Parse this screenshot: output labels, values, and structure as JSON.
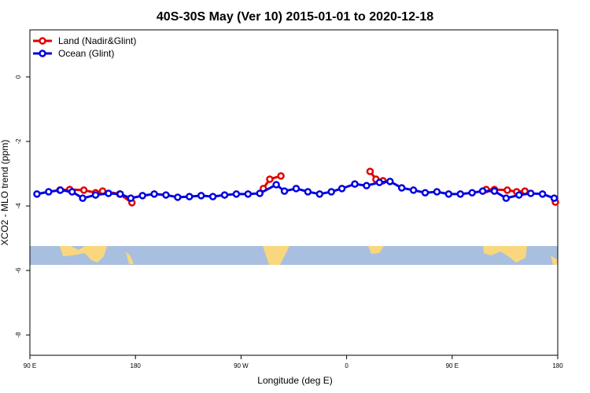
{
  "chart_data": {
    "type": "line",
    "title": "40S-30S May (Ver 10)   2015-01-01 to 2020-12-18",
    "xlabel": "Longitude (deg E)",
    "ylabel": "XCO2 - MLO trend (ppm)",
    "xlim": [
      90,
      540
    ],
    "xticks": [
      {
        "value": 90,
        "label": "90 E"
      },
      180,
      {
        "value": 270,
        "label": "90 W"
      },
      {
        "value": 360,
        "label": "0"
      },
      {
        "value": 450,
        "label": "90 E"
      },
      {
        "value": 540,
        "label": "180"
      }
    ],
    "ylim": [
      -8.63,
      1.46
    ],
    "yticks": [
      0,
      -2,
      -4,
      -6,
      -8
    ],
    "legend": "top-left",
    "series": [
      {
        "name": "Land (Nadir&Glint)",
        "color": "#e00000",
        "x": [
          115.5,
          124,
          136,
          146,
          152,
          166.5,
          177,
          null,
          289,
          294.5,
          304,
          null,
          380,
          385,
          391,
          null,
          479,
          486,
          497,
          505,
          512,
          null,
          538
        ],
        "values": [
          -3.51,
          -3.49,
          -3.51,
          -3.59,
          -3.54,
          -3.63,
          -3.9,
          null,
          -3.46,
          -3.17,
          -3.07,
          null,
          -2.93,
          -3.17,
          -3.22,
          null,
          -3.49,
          -3.49,
          -3.51,
          -3.56,
          -3.54,
          null,
          -3.88
        ]
      },
      {
        "name": "Ocean (Glint)",
        "color": "#0000e0",
        "x": [
          96,
          106,
          116,
          126,
          135,
          146,
          157,
          167,
          176,
          186,
          196,
          206,
          216,
          226,
          236,
          246,
          256,
          266,
          276,
          286,
          300,
          307,
          317,
          327,
          337,
          347,
          356,
          367,
          377,
          388,
          397,
          407,
          417,
          427,
          437,
          447,
          457,
          467,
          476,
          486,
          496,
          507,
          517,
          527,
          537
        ],
        "values": [
          -3.63,
          -3.56,
          -3.51,
          -3.56,
          -3.76,
          -3.66,
          -3.61,
          -3.63,
          -3.76,
          -3.68,
          -3.63,
          -3.66,
          -3.73,
          -3.71,
          -3.68,
          -3.71,
          -3.66,
          -3.63,
          -3.63,
          -3.61,
          -3.34,
          -3.54,
          -3.46,
          -3.56,
          -3.63,
          -3.56,
          -3.46,
          -3.32,
          -3.37,
          -3.27,
          -3.24,
          -3.44,
          -3.51,
          -3.59,
          -3.56,
          -3.63,
          -3.63,
          -3.59,
          -3.54,
          -3.54,
          -3.76,
          -3.66,
          -3.61,
          -3.63,
          -3.76
        ]
      }
    ]
  }
}
